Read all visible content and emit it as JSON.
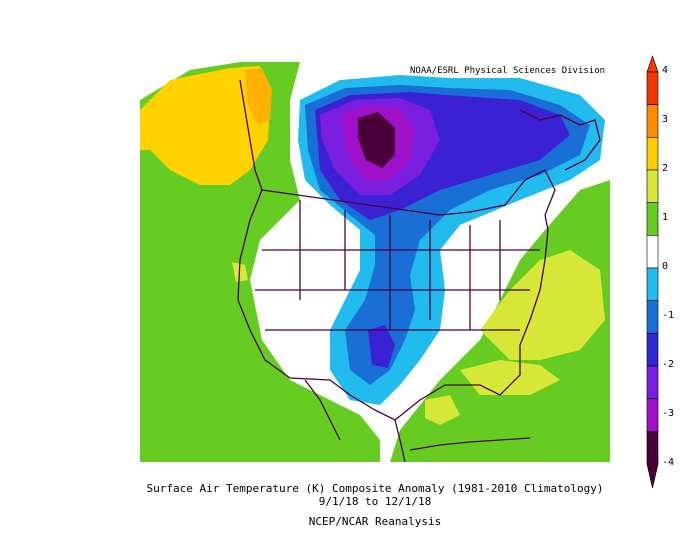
{
  "credit": "NOAA/ESRL Physical Sciences Division",
  "caption": {
    "line1": "Surface Air Temperature (K) Composite Anomaly (1981-2010 Climatology)",
    "line2": "9/1/18  to 12/1/18",
    "line3": "NCEP/NCAR Reanalysis"
  },
  "colorbar": {
    "ticks": [
      "4",
      "3",
      "2",
      "1",
      "0",
      "-1",
      "-2",
      "-3",
      "-4"
    ],
    "colors": [
      "#f03a00",
      "#ff8c00",
      "#ffcc00",
      "#d8e838",
      "#66cc22",
      "#ffffff",
      "#22bbee",
      "#1a6fd6",
      "#2a2ad0",
      "#7a1fe0",
      "#a010c8",
      "#4a0038"
    ]
  },
  "palette": {
    "green": "#66cc22",
    "lime": "#d8e838",
    "yellow": "#ffd200",
    "orange": "#ffb000",
    "white": "#ffffff",
    "cyan": "#22bbee",
    "blue": "#1a6fd6",
    "indigo": "#3a22d4",
    "violet": "#7a1fe0",
    "magenta": "#a010c8",
    "dark": "#4a0038",
    "border": "#4a0040"
  }
}
